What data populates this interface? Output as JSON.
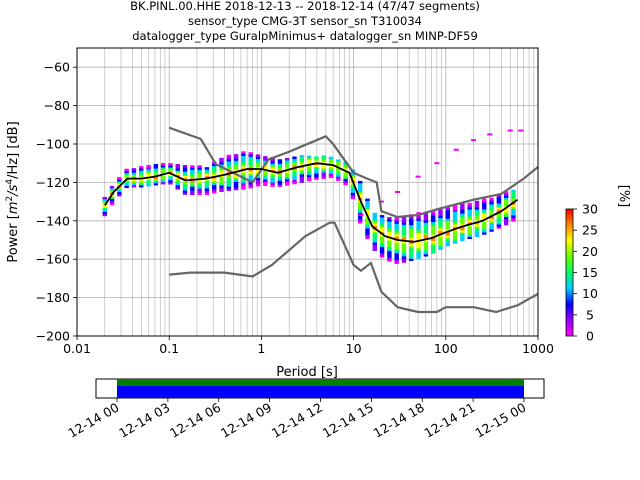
{
  "chart_data": [
    {
      "type": "heatmap",
      "title_lines": [
        "BK.PINL.00.HHE   2018-12-13 -- 2018-12-14  (47/47 segments)",
        "sensor_type CMG-3T sensor_sn T310034",
        "datalogger_type GuralpMinimus+ datalogger_sn MINP-DF59"
      ],
      "xlabel": "Period [s]",
      "ylabel_parts": [
        "Power [",
        "m",
        "2",
        "/s",
        "4",
        "/Hz] [dB]"
      ],
      "xscale": "log",
      "xlim": [
        0.01,
        1000
      ],
      "ylim": [
        -200,
        -50
      ],
      "xticks": [
        {
          "value": 0.01,
          "label": "0.01"
        },
        {
          "value": 0.1,
          "label": "0.1"
        },
        {
          "value": 1,
          "label": "1"
        },
        {
          "value": 10,
          "label": "10"
        },
        {
          "value": 100,
          "label": "100"
        },
        {
          "value": 1000,
          "label": "1000"
        }
      ],
      "yticks": [
        {
          "value": -60,
          "label": "−60"
        },
        {
          "value": -80,
          "label": "−80"
        },
        {
          "value": -100,
          "label": "−100"
        },
        {
          "value": -120,
          "label": "−120"
        },
        {
          "value": -140,
          "label": "−140"
        },
        {
          "value": -160,
          "label": "−160"
        },
        {
          "value": -180,
          "label": "−180"
        },
        {
          "value": -200,
          "label": "−200"
        }
      ],
      "grid": true,
      "nhnm": [
        [
          0.1,
          -168
        ],
        [
          0.17,
          -167
        ],
        [
          0.4,
          -167
        ],
        [
          0.8,
          -169
        ],
        [
          1.3,
          -163
        ],
        [
          3,
          -148
        ],
        [
          5.5,
          -141
        ],
        [
          6.2,
          -141
        ],
        [
          10,
          -163
        ],
        [
          12,
          -166
        ],
        [
          15.4,
          -162
        ],
        [
          20,
          -177
        ],
        [
          30,
          -185
        ],
        [
          50,
          -187.5
        ],
        [
          80,
          -187.5
        ],
        [
          100,
          -185
        ],
        [
          200,
          -185
        ],
        [
          350,
          -187.5
        ],
        [
          600,
          -184
        ],
        [
          1000,
          -178
        ]
      ],
      "nlnm": [
        [
          0.1,
          -91.5
        ],
        [
          0.22,
          -97.4
        ],
        [
          0.32,
          -110.5
        ],
        [
          0.8,
          -120
        ],
        [
          1.2,
          -108
        ],
        [
          2,
          -104
        ],
        [
          4.2,
          -97.5
        ],
        [
          5,
          -96
        ],
        [
          6,
          -100
        ],
        [
          10,
          -115
        ],
        [
          14,
          -118
        ],
        [
          17.8,
          -120
        ],
        [
          20,
          -135
        ],
        [
          30,
          -138
        ],
        [
          50,
          -137
        ],
        [
          80,
          -134
        ],
        [
          140,
          -131
        ],
        [
          200,
          -129
        ],
        [
          400,
          -126
        ],
        [
          700,
          -118
        ],
        [
          1000,
          -112
        ]
      ],
      "median": [
        [
          0.02,
          -132
        ],
        [
          0.025,
          -125
        ],
        [
          0.035,
          -118
        ],
        [
          0.05,
          -118
        ],
        [
          0.07,
          -117
        ],
        [
          0.1,
          -115
        ],
        [
          0.15,
          -119
        ],
        [
          0.25,
          -118
        ],
        [
          0.4,
          -116
        ],
        [
          0.7,
          -113
        ],
        [
          1,
          -113
        ],
        [
          1.5,
          -115
        ],
        [
          2.5,
          -112
        ],
        [
          4,
          -110
        ],
        [
          6,
          -111
        ],
        [
          9,
          -115
        ],
        [
          12,
          -130
        ],
        [
          16,
          -143
        ],
        [
          22,
          -148
        ],
        [
          30,
          -150
        ],
        [
          45,
          -151
        ],
        [
          70,
          -149
        ],
        [
          100,
          -146
        ],
        [
          150,
          -143
        ],
        [
          250,
          -140
        ],
        [
          400,
          -135
        ],
        [
          600,
          -129
        ]
      ],
      "psd_bands": [
        [
          0.02,
          -137,
          -128
        ],
        [
          0.025,
          -130,
          -120
        ],
        [
          0.035,
          -122,
          -113
        ],
        [
          0.05,
          -122,
          -112
        ],
        [
          0.07,
          -121,
          -110
        ],
        [
          0.1,
          -120,
          -110
        ],
        [
          0.15,
          -126,
          -111
        ],
        [
          0.25,
          -126,
          -112
        ],
        [
          0.4,
          -124,
          -106
        ],
        [
          0.7,
          -123,
          -104
        ],
        [
          1,
          -121,
          -106
        ],
        [
          1.5,
          -122,
          -108
        ],
        [
          2.5,
          -120,
          -106
        ],
        [
          4,
          -118,
          -106
        ],
        [
          6,
          -117,
          -107
        ],
        [
          9,
          -122,
          -110
        ],
        [
          12,
          -142,
          -120
        ],
        [
          16,
          -154,
          -135
        ],
        [
          22,
          -160,
          -138
        ],
        [
          30,
          -162,
          -138
        ],
        [
          45,
          -160,
          -136
        ],
        [
          70,
          -157,
          -135
        ],
        [
          100,
          -153,
          -133
        ],
        [
          150,
          -150,
          -131
        ],
        [
          250,
          -147,
          -129
        ],
        [
          400,
          -143,
          -126
        ],
        [
          650,
          -138,
          -123
        ]
      ],
      "outlier_trail": [
        [
          12,
          -137
        ],
        [
          20,
          -130
        ],
        [
          30,
          -125
        ],
        [
          50,
          -117
        ],
        [
          80,
          -110
        ],
        [
          130,
          -103
        ],
        [
          200,
          -98
        ],
        [
          300,
          -95
        ],
        [
          500,
          -93
        ],
        [
          650,
          -93
        ]
      ],
      "colorbar": {
        "label": "[%]",
        "range": [
          0,
          30
        ],
        "ticks": [
          "0",
          "5",
          "10",
          "15",
          "20",
          "25",
          "30"
        ],
        "colors": [
          "#ff00ff",
          "#9900ff",
          "#0000ff",
          "#00ccff",
          "#00ff66",
          "#66ff00",
          "#ffff00",
          "#ff8800",
          "#ff0000"
        ]
      }
    },
    {
      "type": "timeline",
      "xticks": [
        "12-14 00",
        "12-14 03",
        "12-14 06",
        "12-14 09",
        "12-14 12",
        "12-14 15",
        "12-14 18",
        "12-14 21",
        "12-15 00"
      ],
      "green_color": "#008000",
      "blue_color": "#0000ff"
    }
  ]
}
